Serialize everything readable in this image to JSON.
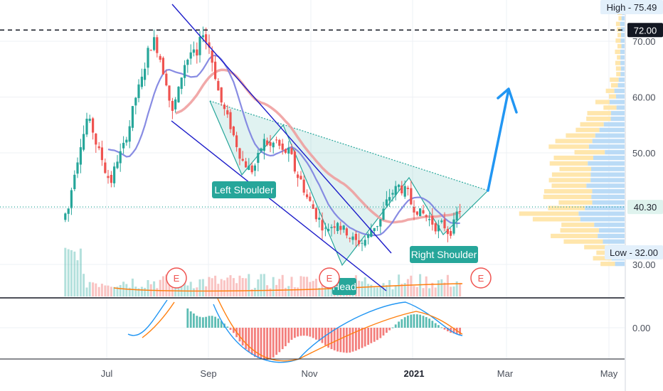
{
  "chart_data": {
    "type": "candlestick",
    "price_axis": {
      "ticks": [
        "30.00",
        "40.00",
        "50.00",
        "60.00",
        "70.00"
      ],
      "range": [
        22,
        77
      ]
    },
    "oscillator_axis": {
      "ticks": [
        "0.00"
      ]
    },
    "time_axis": {
      "labels": [
        {
          "text": "Jul",
          "bold": false
        },
        {
          "text": "Sep",
          "bold": false
        },
        {
          "text": "Nov",
          "bold": false
        },
        {
          "text": "2021",
          "bold": true
        },
        {
          "text": "Mar",
          "bold": false
        },
        {
          "text": "May",
          "bold": false
        }
      ]
    },
    "price_badges": {
      "high": "High - 75.49",
      "level": "72.00",
      "last": "40.30",
      "low": "Low - 32.00"
    },
    "reference_levels": [
      72.0,
      40.3
    ],
    "pattern_labels": {
      "left_shoulder": "Left Shoulder",
      "head": "Head",
      "right_shoulder": "Right Shoulder"
    },
    "earnings_marker": "E",
    "close_series": [
      40,
      47,
      52,
      56,
      54,
      50,
      47,
      45,
      49,
      51,
      55,
      60,
      63,
      68,
      70,
      67,
      63,
      57,
      61,
      66,
      68,
      67,
      72,
      69,
      64,
      59,
      56,
      53,
      50,
      48,
      47,
      49,
      52,
      51,
      52,
      50,
      50,
      47,
      45,
      42,
      40,
      38,
      36,
      37,
      38,
      36,
      35,
      34,
      34,
      35,
      37,
      38,
      41,
      43,
      44,
      43,
      41,
      40,
      39,
      38,
      37,
      37,
      36,
      37,
      40
    ],
    "moving_averages": [
      {
        "name": "",
        "color": "#7b7fe0"
      },
      {
        "name": "",
        "color": "#ef9a9a"
      }
    ],
    "grid": true,
    "colors": {
      "up": "#26a69a",
      "down": "#ef5350",
      "trendline": "#1b1bc9",
      "neckline": "#26a69a",
      "projection_arrow": "#2196f3",
      "macd_line": "#2196f3",
      "signal_line": "#ff7f0e",
      "volume_ma": "#ff7f0e",
      "profile_up": "#b3d7f5",
      "profile_down": "#ffe3a3"
    }
  }
}
